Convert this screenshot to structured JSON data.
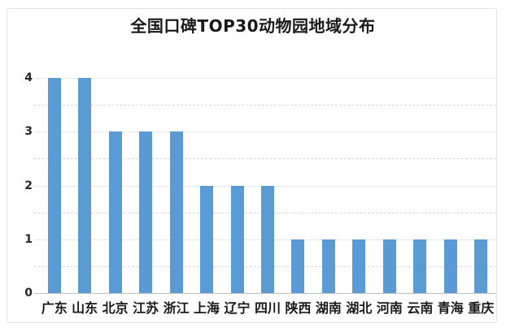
{
  "chart_data": {
    "type": "bar",
    "title": "全国口碑TOP30动物园地域分布",
    "categories": [
      "广东",
      "山东",
      "北京",
      "江苏",
      "浙江",
      "上海",
      "辽宁",
      "四川",
      "陕西",
      "湖南",
      "湖北",
      "河南",
      "云南",
      "青海",
      "重庆"
    ],
    "values": [
      4,
      4,
      3,
      3,
      3,
      2,
      2,
      2,
      1,
      1,
      1,
      1,
      1,
      1,
      1
    ],
    "xlabel": "",
    "ylabel": "",
    "ylim": [
      0,
      4
    ],
    "yticks": [
      0,
      1,
      2,
      3,
      4
    ],
    "grid": {
      "minor_step": 0.5,
      "minor_style": "dashed",
      "major_style": "solid",
      "visible": true
    },
    "legend_position": "none",
    "colors": {
      "bar": "#5B9BD5",
      "grid_major": "#e7e7e7",
      "grid_minor": "#d8d8d8",
      "axis_line": "#bfbfbf",
      "text": "#1a1a1a",
      "tick_text": "#262626",
      "frame_border": "#e2e2e2",
      "background": "#ffffff"
    }
  }
}
